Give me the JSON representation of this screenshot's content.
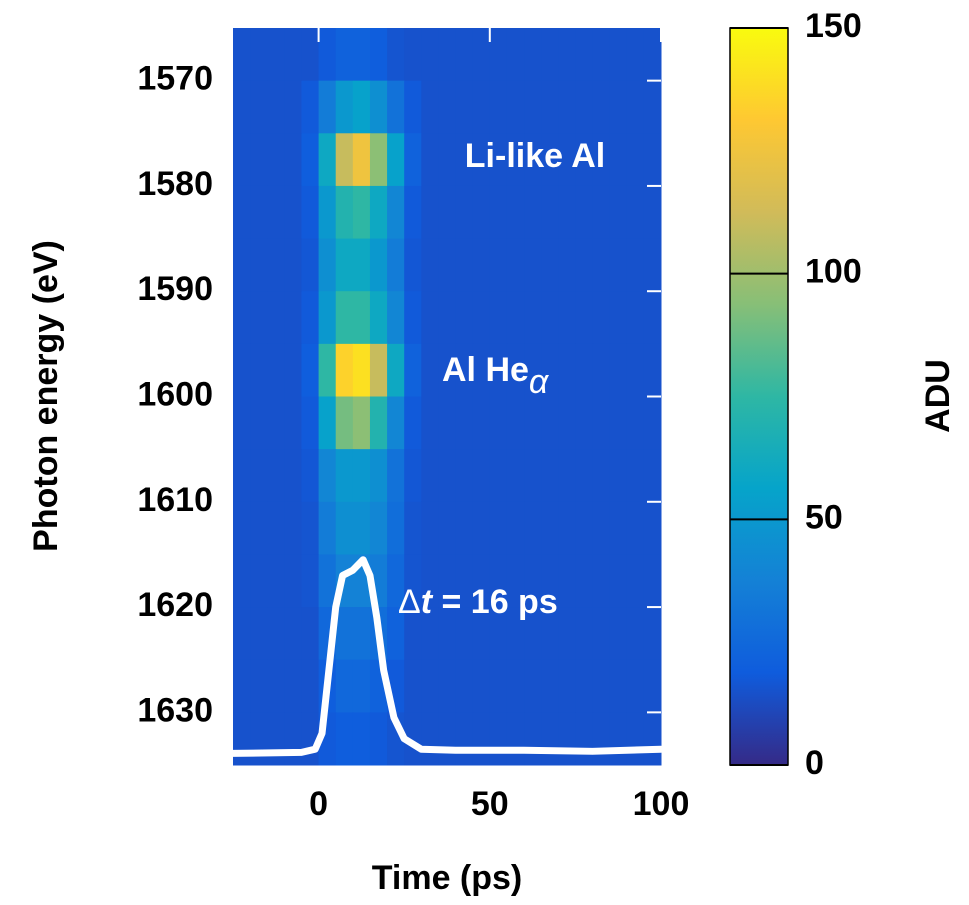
{
  "chart_data": {
    "type": "heatmap",
    "xlabel": "Time (ps)",
    "ylabel": "Photon energy (eV)",
    "xlim": [
      -25,
      100
    ],
    "xticks": [
      0,
      50,
      100
    ],
    "ylim": [
      1565,
      1635
    ],
    "y_inverted": true,
    "yticks": [
      1570,
      1580,
      1590,
      1600,
      1610,
      1620,
      1630
    ],
    "x_bins": [
      -25,
      -20,
      -15,
      -10,
      -5,
      0,
      5,
      10,
      15,
      20,
      25,
      30,
      35,
      40,
      45,
      50,
      55,
      60,
      65,
      70,
      75,
      80,
      85,
      90,
      95,
      100
    ],
    "y_bins": [
      1565,
      1570,
      1575,
      1580,
      1585,
      1590,
      1595,
      1600,
      1605,
      1610,
      1615,
      1620,
      1625,
      1630,
      1635
    ],
    "z": [
      [
        15,
        15,
        15,
        15,
        15,
        18,
        22,
        22,
        20,
        16,
        15,
        15,
        15,
        15,
        15,
        15,
        15,
        15,
        15,
        15,
        15,
        15,
        15,
        15,
        15
      ],
      [
        15,
        15,
        15,
        15,
        18,
        35,
        50,
        55,
        45,
        30,
        18,
        15,
        15,
        15,
        15,
        15,
        15,
        15,
        15,
        15,
        15,
        15,
        15,
        15,
        15
      ],
      [
        15,
        15,
        15,
        15,
        20,
        60,
        110,
        125,
        95,
        55,
        22,
        15,
        15,
        15,
        15,
        15,
        15,
        15,
        15,
        15,
        15,
        15,
        15,
        15,
        15
      ],
      [
        15,
        15,
        15,
        15,
        18,
        50,
        70,
        75,
        60,
        40,
        18,
        15,
        15,
        15,
        15,
        15,
        15,
        15,
        15,
        15,
        15,
        15,
        15,
        15,
        15
      ],
      [
        15,
        15,
        15,
        15,
        17,
        45,
        60,
        60,
        50,
        35,
        17,
        15,
        15,
        15,
        15,
        15,
        15,
        15,
        15,
        15,
        15,
        15,
        15,
        15,
        15
      ],
      [
        15,
        15,
        15,
        15,
        18,
        50,
        75,
        75,
        60,
        40,
        18,
        15,
        15,
        15,
        15,
        15,
        15,
        15,
        15,
        15,
        15,
        15,
        15,
        15,
        15
      ],
      [
        15,
        15,
        15,
        15,
        20,
        75,
        135,
        140,
        110,
        60,
        22,
        15,
        15,
        15,
        15,
        15,
        15,
        15,
        15,
        15,
        15,
        15,
        15,
        15,
        15
      ],
      [
        15,
        15,
        15,
        15,
        18,
        55,
        90,
        95,
        70,
        40,
        18,
        15,
        15,
        15,
        15,
        15,
        15,
        15,
        15,
        15,
        15,
        15,
        15,
        15,
        15
      ],
      [
        15,
        15,
        15,
        15,
        17,
        40,
        50,
        50,
        45,
        30,
        17,
        15,
        15,
        15,
        15,
        15,
        15,
        15,
        15,
        15,
        15,
        15,
        15,
        15,
        15
      ],
      [
        15,
        15,
        15,
        15,
        16,
        35,
        45,
        45,
        40,
        28,
        16,
        15,
        15,
        15,
        15,
        15,
        15,
        15,
        15,
        15,
        15,
        15,
        15,
        15,
        15
      ],
      [
        15,
        15,
        15,
        15,
        16,
        30,
        38,
        38,
        35,
        25,
        16,
        15,
        15,
        15,
        15,
        15,
        15,
        15,
        15,
        15,
        15,
        15,
        15,
        15,
        15
      ],
      [
        15,
        15,
        15,
        15,
        15,
        25,
        30,
        30,
        28,
        22,
        15,
        15,
        15,
        15,
        15,
        15,
        15,
        15,
        15,
        15,
        15,
        15,
        15,
        15,
        15
      ],
      [
        15,
        15,
        15,
        15,
        15,
        20,
        25,
        25,
        22,
        18,
        15,
        15,
        15,
        15,
        15,
        15,
        15,
        15,
        15,
        15,
        15,
        15,
        15,
        15,
        15
      ],
      [
        15,
        15,
        15,
        15,
        15,
        18,
        20,
        20,
        18,
        16,
        15,
        15,
        15,
        15,
        15,
        15,
        15,
        15,
        15,
        15,
        15,
        15,
        15,
        15,
        15
      ]
    ],
    "colormap": [
      "#352a87",
      "#0f5cdd",
      "#1481d6",
      "#06a4ca",
      "#2eb7a4",
      "#87bf77",
      "#d1bb59",
      "#fec832",
      "#f9fb0e"
    ],
    "clim": [
      0,
      150
    ],
    "cticks": [
      0,
      50,
      100,
      150
    ],
    "clabel": "ADU",
    "lineout": {
      "color": "#ffffff",
      "x": [
        -25,
        -5,
        -1,
        1,
        3,
        5,
        7,
        10,
        13,
        15,
        17,
        19,
        22,
        25,
        30,
        40,
        60,
        80,
        100
      ],
      "y": [
        1633.9,
        1633.8,
        1633.5,
        1632,
        1626,
        1620,
        1617,
        1616.5,
        1615.5,
        1617,
        1621,
        1626,
        1630.5,
        1632.5,
        1633.5,
        1633.6,
        1633.6,
        1633.7,
        1633.5
      ]
    },
    "annotations": {
      "li_like": "Li-like Al",
      "he_alpha": {
        "text": "Al He",
        "subscript": "α"
      },
      "duration": {
        "symbol": "Δ",
        "italic": "t",
        "rest": " = 16 ps"
      }
    }
  }
}
